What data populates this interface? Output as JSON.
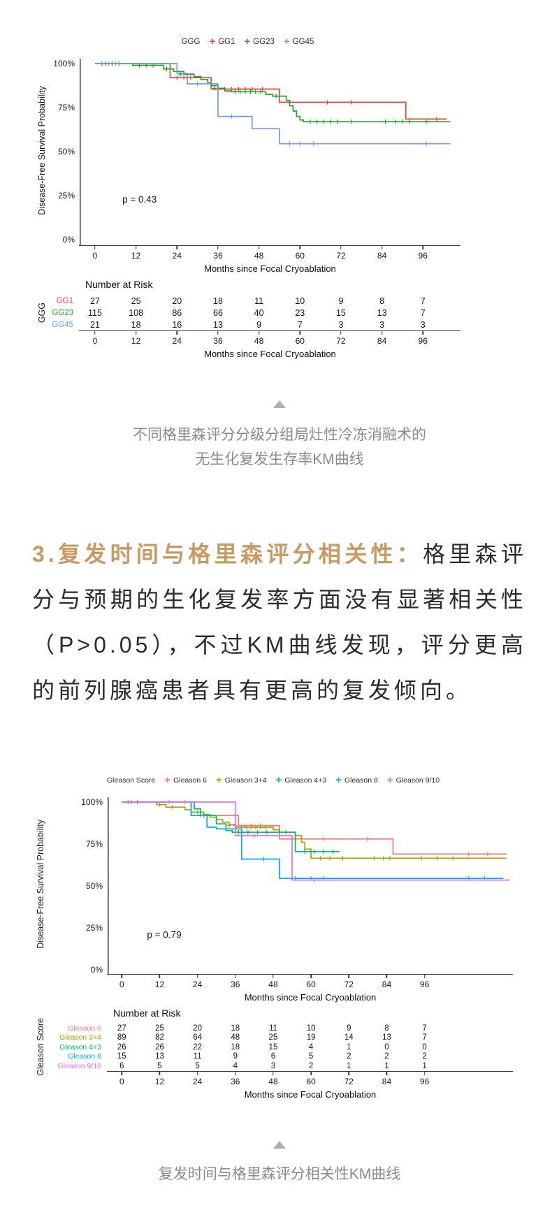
{
  "ui": {
    "triangle_icon": ""
  },
  "captions": {
    "chart1_line1": "不同格里森评分分级分组局灶性冷冻消融术的",
    "chart1_line2": "无生化复发生存率KM曲线",
    "chart2": "复发时间与格里森评分相关性KM曲线"
  },
  "paragraph": {
    "heading": "3.复发时间与格里森评分相关性：",
    "body": "格里森评分与预期的生化复发率方面没有显著相关性（P>0.05），不过KM曲线发现，评分更高的前列腺癌患者具有更高的复发倾向。",
    "heading_color": "#c89962"
  },
  "chart_data": [
    {
      "type": "line",
      "subtype": "kaplan-meier-step",
      "legend_title": "GGG",
      "pvalue": "p = 0.43",
      "ylabel": "Disease-Free Survival Probability",
      "xlabel": "Months since Focal Cryoablation",
      "ytick_labels": [
        "100%",
        "75%",
        "50%",
        "25%",
        "0%"
      ],
      "ytick_values": [
        100,
        75,
        50,
        25,
        0
      ],
      "xticks": [
        0,
        12,
        24,
        36,
        48,
        60,
        72,
        84,
        96
      ],
      "xdomain": [
        -4.5,
        107
      ],
      "ylim": [
        0,
        100
      ],
      "series": [
        {
          "name": "GG1",
          "color": "#e8473d",
          "end": 103,
          "steps": [
            [
              0,
              100
            ],
            [
              22,
              92
            ],
            [
              34,
              85.5
            ],
            [
              54,
              78
            ],
            [
              91,
              68.5
            ]
          ],
          "censors": [
            [
              3,
              100
            ],
            [
              5,
              100
            ],
            [
              7,
              100
            ],
            [
              24,
              92
            ],
            [
              26,
              92
            ],
            [
              28,
              92
            ],
            [
              31,
              92
            ],
            [
              36,
              85.5
            ],
            [
              38,
              85.5
            ],
            [
              40,
              85.5
            ],
            [
              42,
              85.5
            ],
            [
              44,
              85.5
            ],
            [
              46,
              85.5
            ],
            [
              49,
              85.5
            ],
            [
              68,
              78
            ],
            [
              75,
              78
            ],
            [
              100,
              68.5
            ]
          ]
        },
        {
          "name": "GG23",
          "color": "#29a329",
          "end": 104,
          "steps": [
            [
              0,
              100
            ],
            [
              11,
              99
            ],
            [
              20,
              97
            ],
            [
              23,
              95.5
            ],
            [
              26,
              94
            ],
            [
              29,
              92.5
            ],
            [
              31,
              91
            ],
            [
              33,
              89
            ],
            [
              34,
              87.5
            ],
            [
              36,
              86
            ],
            [
              38,
              84.5
            ],
            [
              40,
              84
            ],
            [
              50,
              82.5
            ],
            [
              52,
              81.5
            ],
            [
              56,
              79
            ],
            [
              57,
              76
            ],
            [
              58,
              73
            ],
            [
              59,
              70
            ],
            [
              60,
              68
            ],
            [
              61,
              67
            ]
          ],
          "censors": [
            [
              2,
              100
            ],
            [
              4,
              100
            ],
            [
              13,
              99
            ],
            [
              15,
              99
            ],
            [
              17,
              99
            ],
            [
              21,
              97
            ],
            [
              25,
              94
            ],
            [
              35,
              86
            ],
            [
              41,
              84
            ],
            [
              42.5,
              84
            ],
            [
              44,
              84
            ],
            [
              45.5,
              84
            ],
            [
              47,
              84
            ],
            [
              48.5,
              84
            ],
            [
              53,
              81.5
            ],
            [
              63,
              67
            ],
            [
              65,
              67
            ],
            [
              67,
              67
            ],
            [
              69,
              67
            ],
            [
              71,
              67
            ],
            [
              75,
              67
            ],
            [
              85,
              67
            ],
            [
              88,
              67
            ],
            [
              90,
              67
            ],
            [
              92,
              67
            ],
            [
              97,
              67
            ]
          ]
        },
        {
          "name": "GG45",
          "color": "#6e9bf4",
          "end": 104,
          "steps": [
            [
              0,
              100
            ],
            [
              24,
              94.5
            ],
            [
              27,
              88.5
            ],
            [
              36,
              70
            ],
            [
              46,
              63
            ],
            [
              54,
              54.5
            ]
          ],
          "censors": [
            [
              2,
              100
            ],
            [
              4,
              100
            ],
            [
              6,
              100
            ],
            [
              30,
              88.5
            ],
            [
              40,
              70
            ],
            [
              57,
              54.5
            ],
            [
              60,
              54.5
            ],
            [
              64,
              54.5
            ],
            [
              97,
              54.5
            ]
          ]
        }
      ],
      "risk_table": {
        "title": "Number at Risk",
        "group_label": "GGG",
        "rows": [
          {
            "label": "GG1",
            "color": "#e8473d",
            "values": [
              27,
              25,
              20,
              18,
              11,
              10,
              9,
              8,
              7
            ]
          },
          {
            "label": "GG23",
            "color": "#29a329",
            "values": [
              115,
              108,
              86,
              66,
              40,
              23,
              15,
              13,
              7
            ]
          },
          {
            "label": "GG45",
            "color": "#6e9bf4",
            "values": [
              21,
              18,
              16,
              13,
              9,
              7,
              3,
              3,
              3
            ]
          }
        ]
      }
    },
    {
      "type": "line",
      "subtype": "kaplan-meier-step",
      "legend_title": "Gleason Score",
      "pvalue": "p = 0.79",
      "ylabel": "Disease-Free Survival Probability",
      "xlabel": "Months since Focal Cryoablation",
      "ytick_labels": [
        "100%",
        "75%",
        "50%",
        "25%",
        "0%"
      ],
      "ytick_values": [
        100,
        75,
        50,
        25,
        0
      ],
      "xticks": [
        0,
        12,
        24,
        36,
        48,
        60,
        72,
        84,
        96
      ],
      "xdomain": [
        -4.5,
        124
      ],
      "ylim": [
        0,
        100
      ],
      "series": [
        {
          "name": "Gleason 6",
          "color": "#f8766d",
          "end": 122,
          "steps": [
            [
              0,
              100
            ],
            [
              22,
              92
            ],
            [
              37,
              86
            ],
            [
              50,
              78
            ],
            [
              86,
              69
            ]
          ],
          "censors": [
            [
              3,
              100
            ],
            [
              5,
              100
            ],
            [
              25,
              92
            ],
            [
              27,
              92
            ],
            [
              34,
              86
            ],
            [
              36,
              86
            ],
            [
              39,
              86
            ],
            [
              41,
              86
            ],
            [
              44,
              86
            ],
            [
              64,
              78
            ],
            [
              78,
              78
            ],
            [
              110,
              69
            ],
            [
              116,
              69
            ]
          ]
        },
        {
          "name": "Gleason 3+4",
          "color": "#a3a500",
          "end": 122,
          "steps": [
            [
              0,
              100
            ],
            [
              11,
              98.5
            ],
            [
              14,
              97
            ],
            [
              20,
              95.5
            ],
            [
              22,
              94
            ],
            [
              26,
              92.5
            ],
            [
              28,
              91
            ],
            [
              30,
              89.5
            ],
            [
              32,
              88
            ],
            [
              34,
              86.5
            ],
            [
              36,
              85
            ],
            [
              48,
              83.5
            ],
            [
              50,
              82
            ],
            [
              55,
              80
            ],
            [
              57,
              76
            ],
            [
              58,
              72
            ],
            [
              60,
              66.5
            ]
          ],
          "censors": [
            [
              12,
              98.5
            ],
            [
              16,
              97
            ],
            [
              24,
              94
            ],
            [
              38,
              85
            ],
            [
              39.5,
              85
            ],
            [
              41,
              85
            ],
            [
              42.5,
              85
            ],
            [
              44,
              85
            ],
            [
              45.5,
              85
            ],
            [
              52,
              82
            ],
            [
              63,
              66.5
            ],
            [
              66,
              66.5
            ],
            [
              70,
              66.5
            ],
            [
              80,
              66.5
            ],
            [
              83,
              66.5
            ],
            [
              85,
              66.5
            ],
            [
              95,
              66.5
            ],
            [
              100,
              66.5
            ],
            [
              105,
              66.5
            ]
          ]
        },
        {
          "name": "Gleason 4+3",
          "color": "#00ba72",
          "end": 69,
          "steps": [
            [
              0,
              100
            ],
            [
              23,
              96
            ],
            [
              25,
              92
            ],
            [
              30,
              87
            ],
            [
              33,
              83
            ],
            [
              35,
              82
            ],
            [
              55,
              70.5
            ]
          ],
          "censors": [
            [
              26,
              92
            ],
            [
              37,
              82
            ],
            [
              40,
              82
            ],
            [
              43,
              82
            ],
            [
              46,
              82
            ],
            [
              50,
              82
            ],
            [
              58,
              70.5
            ],
            [
              61,
              70.5
            ],
            [
              64,
              70.5
            ],
            [
              67,
              70.5
            ]
          ]
        },
        {
          "name": "Gleason 8",
          "color": "#00b0f6",
          "end": 121,
          "steps": [
            [
              0,
              100
            ],
            [
              22,
              92
            ],
            [
              27,
              85
            ],
            [
              30,
              84
            ],
            [
              38,
              66
            ],
            [
              50,
              54.5
            ]
          ],
          "censors": [
            [
              2,
              100
            ],
            [
              5,
              100
            ],
            [
              33,
              84
            ],
            [
              45,
              66
            ],
            [
              55,
              54.5
            ],
            [
              60,
              54.5
            ],
            [
              64,
              54.5
            ],
            [
              110,
              54.5
            ],
            [
              115,
              54.5
            ]
          ]
        },
        {
          "name": "Gleason 9/10",
          "color": "#e76bf3",
          "end": 123,
          "steps": [
            [
              0,
              100
            ],
            [
              36,
              80
            ],
            [
              54,
              53.5
            ]
          ],
          "censors": [
            [
              15,
              100
            ],
            [
              20,
              100
            ],
            [
              42,
              80
            ],
            [
              61,
              53.5
            ]
          ]
        }
      ],
      "risk_table": {
        "title": "Number at Risk",
        "group_label": "Gleason Score",
        "rows": [
          {
            "label": "Gleason 6",
            "color": "#f8766d",
            "values": [
              27,
              25,
              20,
              18,
              11,
              10,
              9,
              8,
              7
            ]
          },
          {
            "label": "Gleason 3+4",
            "color": "#a3a500",
            "values": [
              89,
              82,
              64,
              48,
              25,
              19,
              14,
              13,
              7
            ]
          },
          {
            "label": "Gleason 4+3",
            "color": "#00ba72",
            "values": [
              26,
              26,
              22,
              18,
              15,
              4,
              1,
              0,
              0
            ]
          },
          {
            "label": "Gleason 8",
            "color": "#00b0f6",
            "values": [
              15,
              13,
              11,
              9,
              6,
              5,
              2,
              2,
              2
            ]
          },
          {
            "label": "Gleason 9/10",
            "color": "#e76bf3",
            "values": [
              6,
              5,
              5,
              4,
              3,
              2,
              1,
              1,
              1
            ]
          }
        ]
      }
    }
  ]
}
